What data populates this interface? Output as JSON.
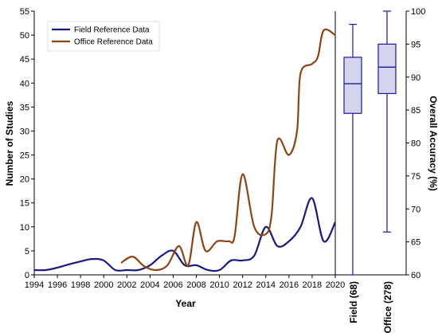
{
  "chart_data": [
    {
      "type": "line",
      "xlabel": "Year",
      "ylabel": "Number of Studies",
      "xlim": [
        1994,
        2020
      ],
      "ylim": [
        0,
        55
      ],
      "x_ticks": [
        "1994",
        "1996",
        "1998",
        "2000",
        "2002",
        "2004",
        "2006",
        "2008",
        "2010",
        "2012",
        "2014",
        "2016",
        "2018",
        "2020"
      ],
      "y_ticks": [
        "0",
        "5",
        "10",
        "15",
        "20",
        "25",
        "30",
        "35",
        "40",
        "45",
        "50",
        "55"
      ],
      "legend_position": "top-left",
      "series": [
        {
          "name": "Field Reference Data",
          "color": "#1a1a7a",
          "points": [
            [
              1994,
              1
            ],
            [
              1995,
              1
            ],
            [
              1996,
              1.5
            ],
            [
              1997,
              2.2
            ],
            [
              1998,
              2.8
            ],
            [
              1999,
              3.3
            ],
            [
              2000,
              3
            ],
            [
              2001,
              1
            ],
            [
              2002,
              1
            ],
            [
              2003,
              1
            ],
            [
              2004,
              2
            ],
            [
              2005,
              4
            ],
            [
              2006,
              5
            ],
            [
              2007,
              2
            ],
            [
              2008,
              2
            ],
            [
              2009,
              1
            ],
            [
              2010,
              1
            ],
            [
              2011,
              3
            ],
            [
              2012,
              3
            ],
            [
              2013,
              4
            ],
            [
              2014,
              10
            ],
            [
              2015,
              6
            ],
            [
              2016,
              7
            ],
            [
              2017,
              10
            ],
            [
              2018,
              16
            ],
            [
              2019,
              7
            ],
            [
              2020,
              11
            ]
          ]
        },
        {
          "name": "Office Reference Data",
          "color": "#8b4513",
          "points": [
            [
              2001.5,
              2.5
            ],
            [
              2002.5,
              3.8
            ],
            [
              2003.5,
              1.8
            ],
            [
              2004.5,
              1
            ],
            [
              2005.5,
              2
            ],
            [
              2006.5,
              6
            ],
            [
              2007.3,
              2
            ],
            [
              2008,
              11
            ],
            [
              2008.8,
              5
            ],
            [
              2009.8,
              7
            ],
            [
              2010.8,
              7
            ],
            [
              2011.3,
              8
            ],
            [
              2012,
              21
            ],
            [
              2013,
              10
            ],
            [
              2014,
              8.5
            ],
            [
              2014.5,
              12.5
            ],
            [
              2015,
              28
            ],
            [
              2016,
              25
            ],
            [
              2016.7,
              30
            ],
            [
              2017,
              42
            ],
            [
              2018,
              44
            ],
            [
              2018.5,
              45.5
            ],
            [
              2019,
              51
            ],
            [
              2020,
              50
            ]
          ]
        }
      ]
    },
    {
      "type": "box",
      "ylabel": "Overall Accuracy (%)",
      "ylim": [
        60,
        100
      ],
      "y_ticks": [
        "60",
        "65",
        "70",
        "75",
        "80",
        "85",
        "90",
        "95",
        "100"
      ],
      "boxes": [
        {
          "label": "Field (68)",
          "min": 60,
          "q1": 84.5,
          "median": 89,
          "q3": 93,
          "max": 98
        },
        {
          "label": "Office (278)",
          "min": 66.5,
          "q1": 87.5,
          "median": 91.5,
          "q3": 95,
          "max": 100
        }
      ],
      "box_color": "#1a1a9a",
      "box_fill": "#d4d4ee"
    }
  ]
}
